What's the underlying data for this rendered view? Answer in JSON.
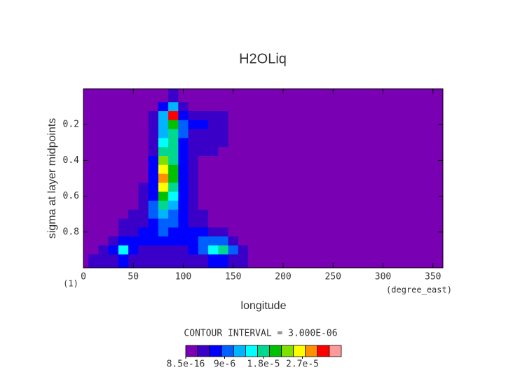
{
  "chart_data": {
    "type": "contour",
    "title": "H2OLiq",
    "xlabel": "longitude",
    "ylabel": "sigma at layer midpoints",
    "xunit": "(degree_east)",
    "corner_label": "(1)",
    "interval_text": "CONTOUR INTERVAL = 3.000E-06",
    "xlim": [
      0,
      360
    ],
    "ylim": [
      1,
      0
    ],
    "xticks": [
      0,
      50,
      100,
      150,
      200,
      250,
      300,
      350
    ],
    "yticks": [
      0.2,
      0.4,
      0.6,
      0.8
    ],
    "x": [
      0,
      10,
      20,
      30,
      40,
      50,
      60,
      70,
      80,
      90,
      100,
      110,
      120,
      130,
      140,
      150,
      160,
      170,
      180,
      360
    ],
    "y": [
      0.05,
      0.1,
      0.15,
      0.2,
      0.25,
      0.3,
      0.35,
      0.4,
      0.45,
      0.5,
      0.55,
      0.6,
      0.65,
      0.7,
      0.75,
      0.8,
      0.85,
      0.9,
      0.95
    ],
    "z": [
      [
        0,
        0,
        0,
        0,
        0,
        0,
        0,
        0,
        2e-06,
        3e-06,
        1e-06,
        0,
        0,
        0,
        0,
        0,
        0,
        0,
        0,
        0
      ],
      [
        0,
        0,
        0,
        0,
        0,
        0,
        0,
        1e-06,
        8e-06,
        1.2e-05,
        4e-06,
        2e-06,
        1e-06,
        0,
        0,
        0,
        0,
        0,
        0,
        0
      ],
      [
        0,
        0,
        0,
        0,
        0,
        0,
        1e-06,
        3e-06,
        1.4e-05,
        3.4e-05,
        8e-06,
        5e-06,
        5e-06,
        4e-06,
        3e-06,
        0,
        0,
        0,
        0,
        0
      ],
      [
        0,
        0,
        0,
        0,
        0,
        0,
        1e-06,
        3e-06,
        1.2e-05,
        2.2e-05,
        1e-05,
        6e-06,
        6e-06,
        5e-06,
        4e-06,
        2e-06,
        0,
        0,
        0,
        0
      ],
      [
        0,
        0,
        0,
        0,
        0,
        0,
        2e-06,
        4e-06,
        1.4e-05,
        2e-05,
        9e-06,
        5e-06,
        5e-06,
        5e-06,
        4e-06,
        2e-06,
        0,
        0,
        0,
        0
      ],
      [
        0,
        0,
        0,
        0,
        0,
        0,
        2e-06,
        5e-06,
        1.7e-05,
        1.9e-05,
        8e-06,
        5e-06,
        4e-06,
        4e-06,
        3e-06,
        1e-06,
        0,
        0,
        0,
        0
      ],
      [
        0,
        0,
        0,
        0,
        0,
        0,
        2e-06,
        5e-06,
        2e-05,
        1.9e-05,
        7e-06,
        4e-06,
        3e-06,
        3e-06,
        2e-06,
        1e-06,
        0,
        0,
        0,
        0
      ],
      [
        0,
        0,
        0,
        0,
        0,
        0,
        2e-06,
        6e-06,
        2.4e-05,
        2e-05,
        6e-06,
        3e-06,
        2e-06,
        2e-06,
        1e-06,
        0,
        0,
        0,
        0,
        0
      ],
      [
        0,
        0,
        0,
        0,
        0,
        0,
        2e-06,
        6e-06,
        2.8e-05,
        2.1e-05,
        6e-06,
        3e-06,
        2e-06,
        1e-06,
        0,
        0,
        0,
        0,
        0,
        0
      ],
      [
        0,
        0,
        0,
        0,
        0,
        0,
        2e-06,
        6e-06,
        3.1e-05,
        2.1e-05,
        6e-06,
        3e-06,
        2e-06,
        1e-06,
        0,
        0,
        0,
        0,
        0,
        0
      ],
      [
        0,
        0,
        0,
        0,
        0,
        1e-06,
        3e-06,
        7e-06,
        2.8e-05,
        2e-05,
        6e-06,
        3e-06,
        2e-06,
        0,
        0,
        0,
        0,
        0,
        0,
        0
      ],
      [
        0,
        0,
        0,
        0,
        0,
        1e-06,
        3e-06,
        8e-06,
        2.2e-05,
        1.7e-05,
        6e-06,
        3e-06,
        2e-06,
        1e-06,
        0,
        0,
        0,
        0,
        0,
        0
      ],
      [
        0,
        0,
        0,
        0,
        1e-06,
        2e-06,
        4e-06,
        9e-06,
        1.8e-05,
        1.4e-05,
        6e-06,
        4e-06,
        2e-06,
        1e-06,
        0,
        0,
        0,
        0,
        0,
        0
      ],
      [
        0,
        0,
        0,
        1e-06,
        2e-06,
        3e-06,
        5e-06,
        9e-06,
        1.4e-05,
        1.1e-05,
        6e-06,
        4e-06,
        3e-06,
        1e-06,
        0,
        0,
        0,
        0,
        0,
        0
      ],
      [
        0,
        0,
        0,
        1e-06,
        3e-06,
        4e-06,
        5e-06,
        8e-06,
        1.1e-05,
        9e-06,
        6e-06,
        5e-06,
        4e-06,
        2e-06,
        1e-06,
        0,
        0,
        0,
        0,
        0
      ],
      [
        0,
        0,
        1e-06,
        2e-06,
        4e-06,
        5e-06,
        6e-06,
        7e-06,
        9e-06,
        8e-06,
        6e-06,
        6e-06,
        6e-06,
        4e-06,
        3e-06,
        1e-06,
        0,
        0,
        0,
        0
      ],
      [
        0,
        0,
        2e-06,
        4e-06,
        7e-06,
        6e-06,
        6e-06,
        6e-06,
        6e-06,
        6e-06,
        6e-06,
        7e-06,
        9e-06,
        1e-05,
        9e-06,
        5e-06,
        1e-06,
        0,
        0,
        0
      ],
      [
        0,
        1e-06,
        3e-06,
        8e-06,
        1.6e-05,
        7e-06,
        5e-06,
        5e-06,
        5e-06,
        5e-06,
        5e-06,
        7e-06,
        1.1e-05,
        1.6e-05,
        1.9e-05,
        1e-05,
        3e-06,
        0,
        0,
        0
      ],
      [
        0,
        3e-06,
        4e-06,
        5e-06,
        6e-06,
        4e-06,
        3e-06,
        3e-06,
        3e-06,
        3e-06,
        3e-06,
        4e-06,
        5e-06,
        6e-06,
        6e-06,
        4e-06,
        3e-06,
        0,
        0,
        0
      ]
    ],
    "levels": [
      8.5e-16,
      3e-06,
      6e-06,
      9e-06,
      1.2e-05,
      1.5e-05,
      1.8e-05,
      2.1e-05,
      2.4e-05,
      2.7e-05,
      3e-05,
      3.3e-05,
      3.6e-05
    ],
    "colors": [
      "#7a00b4",
      "#3a00c8",
      "#0000ff",
      "#0060ff",
      "#00b4ff",
      "#00ffff",
      "#00d890",
      "#00c000",
      "#80e000",
      "#ffff00",
      "#ff9000",
      "#ff0000",
      "#ff9a9a"
    ],
    "colorbar_ticks": [
      {
        "value": 8.5e-16,
        "label": "8.5e-16"
      },
      {
        "value": 9e-06,
        "label": "9e-6"
      },
      {
        "value": 1.8e-05,
        "label": "1.8e-5"
      },
      {
        "value": 2.7e-05,
        "label": "2.7e-5"
      }
    ]
  }
}
